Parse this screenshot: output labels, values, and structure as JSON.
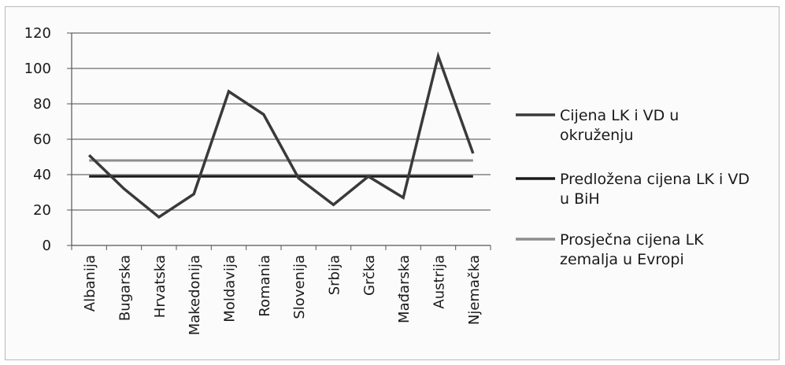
{
  "chart_data": {
    "type": "line",
    "title": "",
    "xlabel": "",
    "ylabel": "",
    "ylim": [
      0,
      120
    ],
    "yticks": [
      0,
      20,
      40,
      60,
      80,
      100,
      120
    ],
    "grid": true,
    "legend_position": "right",
    "categories": [
      "Albanija",
      "Bugarska",
      "Hrvatska",
      "Makedonija",
      "Moldavija",
      "Romania",
      "Slovenija",
      "Srbija",
      "Grčka",
      "Mađarska",
      "Austrija",
      "Njemačka"
    ],
    "series": [
      {
        "name": "Cijena LK i VD u okruženju",
        "legend_lines": [
          "Cijena LK i VD u",
          "okruženju"
        ],
        "color": "#3a3a3a",
        "values": [
          51,
          32,
          16,
          29,
          87,
          74,
          38,
          23,
          39,
          27,
          107,
          52
        ]
      },
      {
        "name": "Predložena cijena LK i VD u BiH",
        "legend_lines": [
          "Predložena cijena LK i VD",
          "u BiH"
        ],
        "color": "#1a1a1a",
        "values": [
          39,
          39,
          39,
          39,
          39,
          39,
          39,
          39,
          39,
          39,
          39,
          39
        ]
      },
      {
        "name": "Prosječna cijena LK zemalja u Evropi",
        "legend_lines": [
          "Prosječna cijena LK",
          "zemalja u Evropi"
        ],
        "color": "#8e8e8e",
        "values": [
          48,
          48,
          48,
          48,
          48,
          48,
          48,
          48,
          48,
          48,
          48,
          48
        ]
      }
    ]
  }
}
